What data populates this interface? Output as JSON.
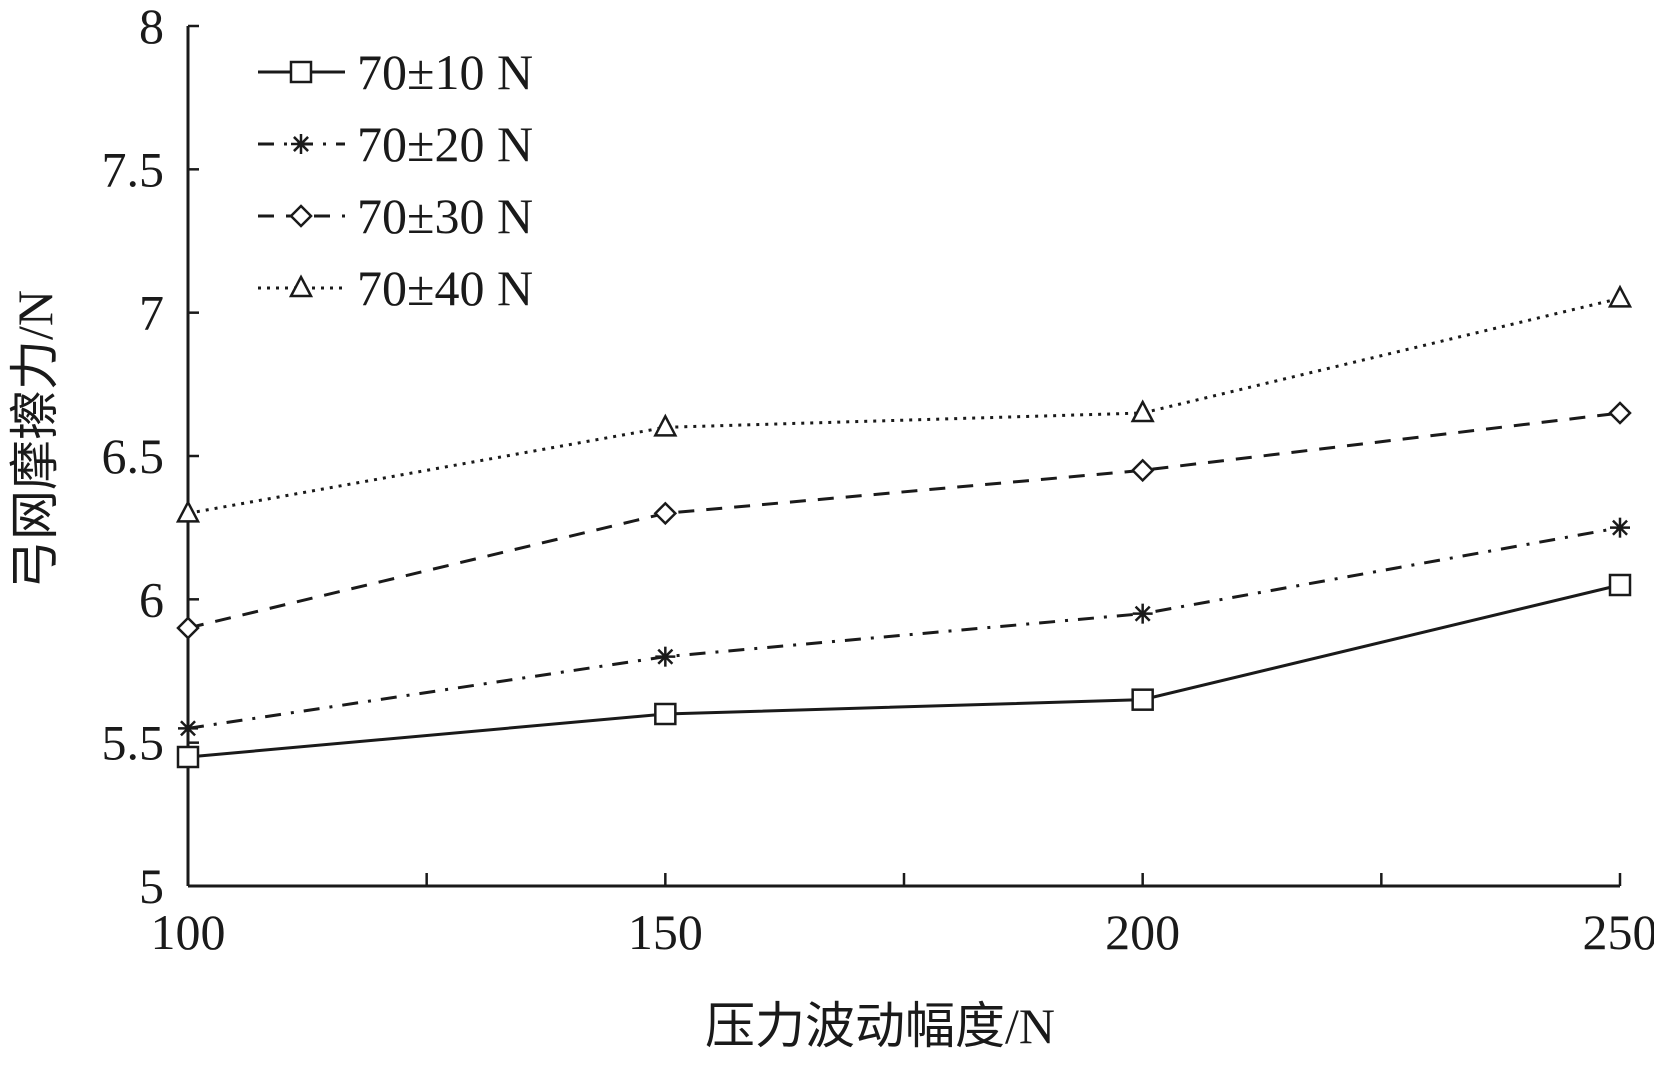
{
  "chart_data": {
    "type": "line",
    "xlabel": "压力波动幅度/N",
    "ylabel": "弓网摩擦力/N",
    "x": [
      100,
      150,
      200,
      250
    ],
    "xlim": [
      100,
      250
    ],
    "ylim": [
      5,
      8
    ],
    "xticks": [
      100,
      150,
      200,
      250
    ],
    "xtick_labels": [
      "100",
      "150",
      "200",
      "250"
    ],
    "xminor_ticks": [
      125,
      175,
      225
    ],
    "yticks": [
      5,
      5.5,
      6,
      6.5,
      7,
      7.5,
      8
    ],
    "ytick_labels": [
      "5",
      "5.5",
      "6",
      "6.5",
      "7",
      "7.5",
      "8"
    ],
    "grid": false,
    "legend_position": "top-left",
    "series": [
      {
        "name": "70±10 N",
        "values": [
          5.45,
          5.6,
          5.65,
          6.05
        ],
        "marker": "square",
        "line_style": "solid",
        "color": "#1a1a1a"
      },
      {
        "name": "70±20 N",
        "values": [
          5.55,
          5.8,
          5.95,
          6.25
        ],
        "marker": "asterisk",
        "line_style": "dash-dot",
        "color": "#1a1a1a"
      },
      {
        "name": "70±30 N",
        "values": [
          5.9,
          6.3,
          6.45,
          6.65
        ],
        "marker": "diamond",
        "line_style": "dashed",
        "color": "#1a1a1a"
      },
      {
        "name": "70±40 N",
        "values": [
          6.3,
          6.6,
          6.65,
          7.05
        ],
        "marker": "triangle",
        "line_style": "dotted",
        "color": "#1a1a1a"
      }
    ]
  }
}
